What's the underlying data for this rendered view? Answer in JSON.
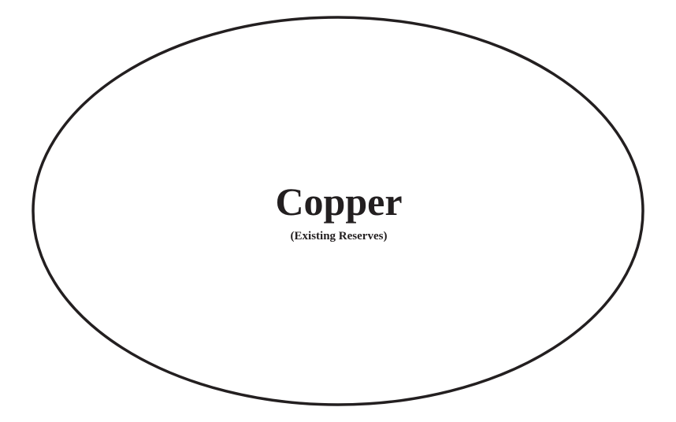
{
  "diagram": {
    "shape": "ellipse",
    "main_label": "Copper",
    "sub_label": "(Existing Reserves)",
    "colors": {
      "stroke": "#231f20",
      "fill": "#ffffff",
      "text": "#231f20"
    }
  }
}
